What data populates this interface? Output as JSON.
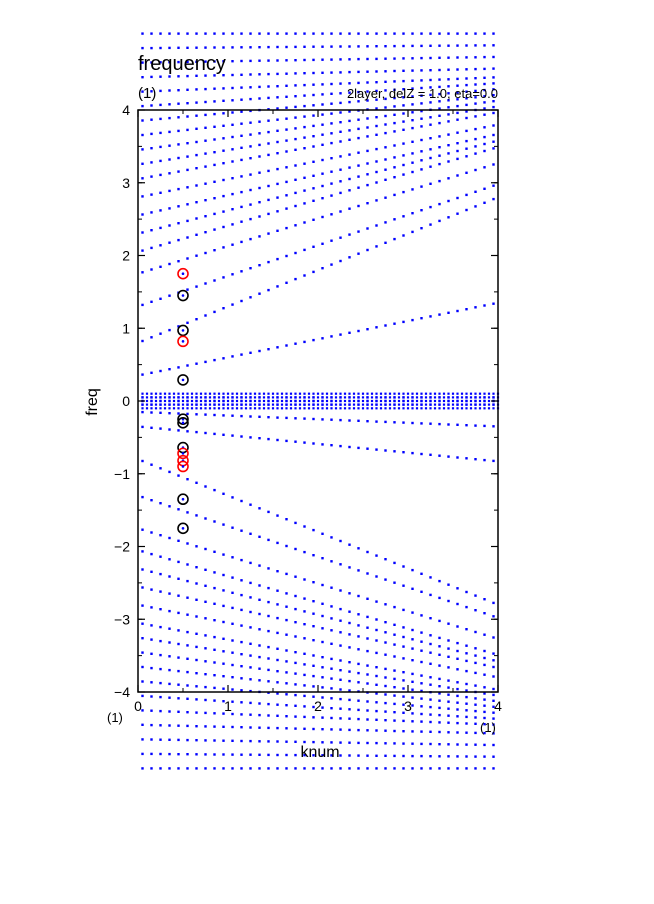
{
  "chart_data": {
    "type": "scatter",
    "title": "frequency",
    "panel_label": "(1)",
    "subtitle": "2layer, delZ = 1.0, eta=0.0",
    "xlabel": "knum",
    "ylabel": "freq",
    "x_unit_left": "(1)",
    "x_unit_right": "(1)",
    "xlim": [
      0,
      4
    ],
    "ylim": [
      -4,
      4
    ],
    "x_ticks": [
      "0",
      "1",
      "2",
      "3",
      "4"
    ],
    "y_ticks": [
      "−4",
      "−3",
      "−2",
      "−1",
      "0",
      "1",
      "2",
      "3",
      "4"
    ],
    "grid": false,
    "colors": {
      "dispersion": "#0000ff",
      "marker_black": "#000000",
      "marker_red": "#ff0000"
    },
    "series": [
      {
        "marker": "circle-open-black",
        "points": [
          [
            0.5,
            1.45
          ],
          [
            0.5,
            0.97
          ],
          [
            0.5,
            0.29
          ],
          [
            0.5,
            -0.25
          ],
          [
            0.5,
            -0.3
          ],
          [
            0.5,
            -0.64
          ],
          [
            0.5,
            -1.35
          ],
          [
            0.5,
            -1.75
          ]
        ]
      },
      {
        "marker": "circle-open-red",
        "points": [
          [
            0.5,
            1.75
          ],
          [
            0.5,
            0.82
          ],
          [
            0.5,
            -0.72
          ],
          [
            0.5,
            -0.82
          ],
          [
            0.5,
            -0.9
          ]
        ]
      }
    ],
    "dispersion": {
      "marker": "blue-dots",
      "k_step": 0.1,
      "k_range": [
        0,
        4
      ],
      "lines": [
        {
          "f0": 0.8,
          "s": 0.5
        },
        {
          "f0": 1.3,
          "s": 0.42
        },
        {
          "f0": 1.75,
          "s": 0.38
        },
        {
          "f0": 2.05,
          "s": 0.36
        },
        {
          "f0": 2.3,
          "s": 0.32
        },
        {
          "f0": 2.55,
          "s": 0.28
        },
        {
          "f0": 2.8,
          "s": 0.25
        },
        {
          "f0": 3.05,
          "s": 0.23
        },
        {
          "f0": 3.25,
          "s": 0.2
        },
        {
          "f0": 3.45,
          "s": 0.17
        },
        {
          "f0": 3.65,
          "s": 0.14
        },
        {
          "f0": 3.85,
          "s": 0.11
        },
        {
          "f0": 4.05,
          "s": 0.08
        },
        {
          "f0": 4.25,
          "s": 0.05
        },
        {
          "f0": 4.45,
          "s": 0.03
        },
        {
          "f0": 4.65,
          "s": 0.02
        },
        {
          "f0": 4.85,
          "s": 0.01
        },
        {
          "f0": 5.05,
          "s": 0.0
        },
        {
          "f0": -0.8,
          "s": -0.5
        },
        {
          "f0": -1.3,
          "s": -0.42
        },
        {
          "f0": -1.75,
          "s": -0.38
        },
        {
          "f0": -2.05,
          "s": -0.36
        },
        {
          "f0": -2.3,
          "s": -0.32
        },
        {
          "f0": -2.55,
          "s": -0.28
        },
        {
          "f0": -2.8,
          "s": -0.25
        },
        {
          "f0": -3.05,
          "s": -0.23
        },
        {
          "f0": -3.25,
          "s": -0.2
        },
        {
          "f0": -3.45,
          "s": -0.17
        },
        {
          "f0": -3.65,
          "s": -0.14
        },
        {
          "f0": -3.85,
          "s": -0.11
        },
        {
          "f0": -4.05,
          "s": -0.08
        },
        {
          "f0": -4.25,
          "s": -0.05
        },
        {
          "f0": -4.45,
          "s": -0.03
        },
        {
          "f0": -4.65,
          "s": -0.02
        },
        {
          "f0": -4.85,
          "s": -0.01
        },
        {
          "f0": -5.05,
          "s": 0.0
        },
        {
          "f0": 0.35,
          "s": 0.25
        },
        {
          "f0": -0.35,
          "s": -0.12
        },
        {
          "f0": -0.15,
          "s": -0.05
        },
        {
          "f0": 0.05,
          "s": 0.0
        },
        {
          "f0": -0.05,
          "s": 0.0
        },
        {
          "f0": 0.0,
          "s": 0.0
        }
      ]
    }
  }
}
